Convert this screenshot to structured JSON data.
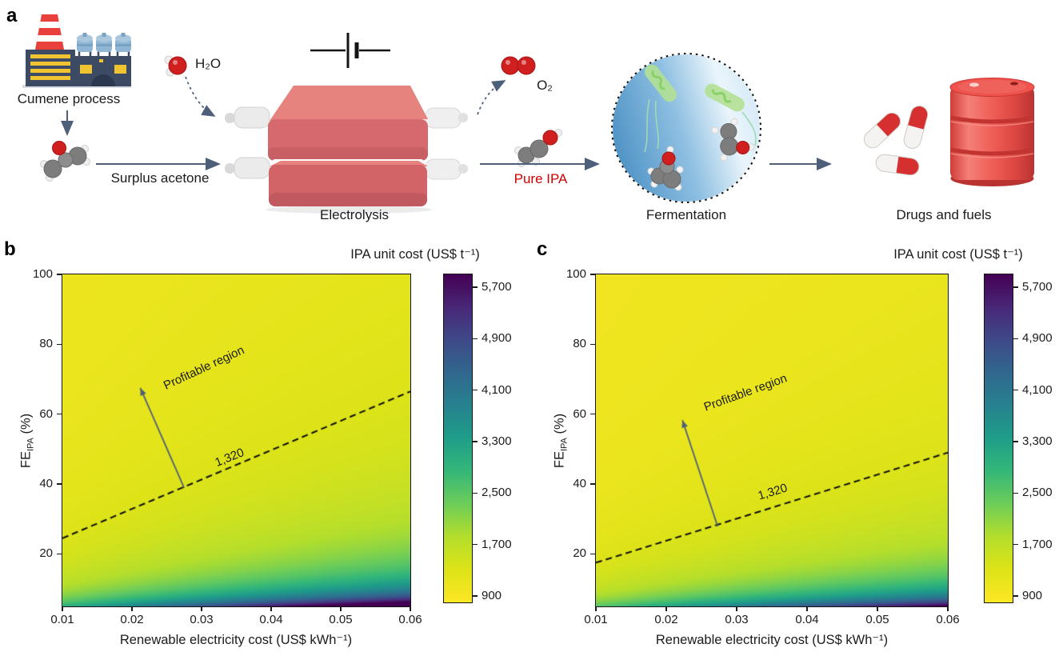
{
  "viridis_stops": [
    "#440154",
    "#482878",
    "#3e4a89",
    "#31688e",
    "#26828e",
    "#1f9e89",
    "#35b779",
    "#6dcd59",
    "#b4de2c",
    "#dde318",
    "#fde725"
  ],
  "panel_a": {
    "letter": "a",
    "labels": {
      "cumene": "Cumene process",
      "surplus_acetone": "Surplus acetone",
      "h2o": "H₂O",
      "o2": "O₂",
      "electrolysis": "Electrolysis",
      "pure_ipa": "Pure IPA",
      "fermentation": "Fermentation",
      "drugs_fuels": "Drugs and fuels"
    },
    "colors": {
      "arrow_slate": "#4e5f7a",
      "pure_ipa_text": "#d40000",
      "electrolyzer_red": "#d5696d",
      "electrolyzer_top": "#e6837e",
      "pipe_gray": "#ebebeb",
      "factory_navy": "#3c4a63",
      "factory_yellow": "#f0c330",
      "chimney_red": "#e8413c",
      "tank_blue": "#8fb6d4",
      "molecule_red": "#cf1f1f",
      "molecule_gray": "#7d7d7d",
      "microbe_green": "#b3e093",
      "ferment_blue": "#4f93c6",
      "pill_red": "#d5302f",
      "barrel_red": "#e8423d"
    }
  },
  "panel_b": {
    "letter": "b"
  },
  "panel_c": {
    "letter": "c"
  },
  "chart_data": [
    {
      "id": "b",
      "type": "heatmap",
      "title": "IPA unit cost (US$ t⁻¹)",
      "xlabel": "Renewable electricity cost (US$ kWh⁻¹)",
      "ylabel_parts": {
        "pre": "FE",
        "sub": "IPA",
        "post": " (%)"
      },
      "x_range": [
        0.01,
        0.06
      ],
      "y_range": [
        5,
        100
      ],
      "xticks": [
        "0.01",
        "0.02",
        "0.03",
        "0.04",
        "0.05",
        "0.06"
      ],
      "xtick_values": [
        0.01,
        0.02,
        0.03,
        0.04,
        0.05,
        0.06
      ],
      "yticks": [
        "100",
        "80",
        "60",
        "40",
        "20"
      ],
      "ytick_values": [
        100,
        80,
        60,
        40,
        20
      ],
      "colorbar": {
        "range": [
          800,
          5900
        ],
        "ticks": [
          "5,700",
          "4,900",
          "4,100",
          "3,300",
          "2,500",
          "1,700",
          "900"
        ],
        "tick_values": [
          5700,
          4900,
          4100,
          3300,
          2500,
          1700,
          900
        ]
      },
      "colormap": "viridis (yellow = low cost, dark purple = high cost)",
      "surface_model": {
        "formula": "cost = base + (a + b*x) / (FE/100)^p",
        "base": 1000,
        "a": 36.2,
        "b": 2734,
        "p": 1.15
      },
      "contour": {
        "label": "1,320",
        "value": 1320,
        "points_x": [
          0.01,
          0.06
        ],
        "points_fe": [
          24.5,
          66.5
        ]
      },
      "annotation": {
        "label": "Profitable region",
        "arrow_from": [
          0.0275,
          38.9
        ],
        "arrow_to": [
          0.0212,
          67.5
        ]
      }
    },
    {
      "id": "c",
      "type": "heatmap",
      "title": "IPA unit cost (US$ t⁻¹)",
      "xlabel": "Renewable electricity cost (US$ kWh⁻¹)",
      "ylabel_parts": {
        "pre": "FE",
        "sub": "IPA",
        "post": " (%)"
      },
      "x_range": [
        0.01,
        0.06
      ],
      "y_range": [
        5,
        100
      ],
      "xticks": [
        "0.01",
        "0.02",
        "0.03",
        "0.04",
        "0.05",
        "0.06"
      ],
      "xtick_values": [
        0.01,
        0.02,
        0.03,
        0.04,
        0.05,
        0.06
      ],
      "yticks": [
        "100",
        "80",
        "60",
        "40",
        "20"
      ],
      "ytick_values": [
        100,
        80,
        60,
        40,
        20
      ],
      "colorbar": {
        "range": [
          800,
          5900
        ],
        "ticks": [
          "5,700",
          "4,900",
          "4,100",
          "3,300",
          "2,500",
          "1,700",
          "900"
        ],
        "tick_values": [
          5700,
          4900,
          4100,
          3300,
          2500,
          1700,
          900
        ]
      },
      "colormap": "viridis (yellow = low cost, dark purple = high cost)",
      "surface_model": {
        "formula": "cost = base + (a + b*x) / (FE/100)^p",
        "base": 950,
        "a": 27.3,
        "b": 2262,
        "p": 1.15
      },
      "contour": {
        "label": "1,320",
        "value": 1320,
        "points_x": [
          0.01,
          0.06
        ],
        "points_fe": [
          17.5,
          49.0
        ]
      },
      "annotation": {
        "label": "Profitable region",
        "arrow_from": [
          0.0273,
          27.9
        ],
        "arrow_to": [
          0.0223,
          58.3
        ]
      }
    }
  ]
}
